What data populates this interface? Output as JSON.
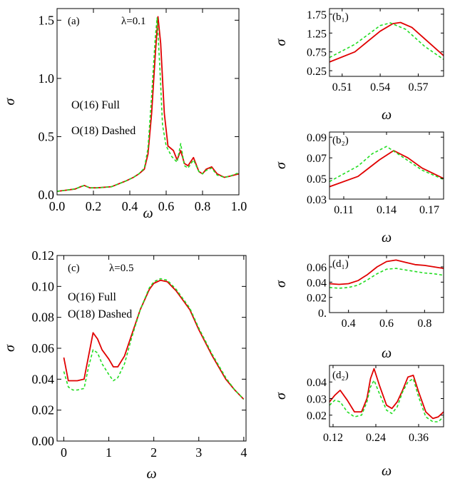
{
  "colors": {
    "full": "#e00000",
    "dashed": "#22dd22",
    "frame": "#000000"
  },
  "legend": {
    "full_label": "O(16) Full",
    "dashed_label": "O(18) Dashed"
  },
  "chart_data": [
    {
      "id": "a",
      "type": "line",
      "tag": "(a)",
      "lambda_label": "λ=0.1",
      "xlabel": "ω",
      "ylabel": "σ",
      "xlim": [
        0.0,
        1.0
      ],
      "ylim": [
        0.0,
        1.6
      ],
      "xticks": [
        "0.0",
        "0.2",
        "0.4",
        "0.6",
        "0.8",
        "1.0"
      ],
      "yticks": [
        "0.0",
        "0.5",
        "1.0",
        "1.5"
      ],
      "series": [
        {
          "name": "O(16) Full",
          "style": "solid",
          "x": [
            0.0,
            0.05,
            0.1,
            0.13,
            0.15,
            0.18,
            0.22,
            0.3,
            0.38,
            0.42,
            0.45,
            0.48,
            0.5,
            0.52,
            0.54,
            0.555,
            0.57,
            0.59,
            0.61,
            0.64,
            0.66,
            0.68,
            0.7,
            0.72,
            0.75,
            0.78,
            0.8,
            0.82,
            0.85,
            0.88,
            0.92,
            0.95,
            1.0
          ],
          "y": [
            0.03,
            0.04,
            0.05,
            0.07,
            0.08,
            0.06,
            0.06,
            0.07,
            0.12,
            0.15,
            0.18,
            0.22,
            0.35,
            0.7,
            1.2,
            1.53,
            1.3,
            0.7,
            0.42,
            0.38,
            0.3,
            0.38,
            0.27,
            0.25,
            0.32,
            0.2,
            0.18,
            0.22,
            0.24,
            0.18,
            0.15,
            0.16,
            0.18
          ]
        },
        {
          "name": "O(18) Dashed",
          "style": "dashed",
          "x": [
            0.0,
            0.05,
            0.1,
            0.13,
            0.15,
            0.18,
            0.22,
            0.3,
            0.38,
            0.42,
            0.45,
            0.48,
            0.5,
            0.52,
            0.54,
            0.55,
            0.565,
            0.58,
            0.6,
            0.63,
            0.66,
            0.68,
            0.7,
            0.72,
            0.75,
            0.78,
            0.8,
            0.82,
            0.85,
            0.88,
            0.92,
            0.95,
            1.0
          ],
          "y": [
            0.03,
            0.04,
            0.05,
            0.07,
            0.08,
            0.06,
            0.06,
            0.07,
            0.12,
            0.15,
            0.18,
            0.23,
            0.4,
            0.85,
            1.35,
            1.52,
            1.1,
            0.6,
            0.42,
            0.33,
            0.28,
            0.44,
            0.25,
            0.23,
            0.3,
            0.2,
            0.18,
            0.21,
            0.23,
            0.17,
            0.15,
            0.16,
            0.19
          ]
        }
      ]
    },
    {
      "id": "b1",
      "type": "line",
      "tag": "(b₁)",
      "xlabel": "ω",
      "ylabel": "σ",
      "xlim": [
        0.5,
        0.59
      ],
      "ylim": [
        0.1,
        1.9
      ],
      "xticks": [
        "0.51",
        "0.54",
        "0.57"
      ],
      "yticks": [
        "0.25",
        "0.75",
        "1.25",
        "1.75"
      ],
      "series": [
        {
          "name": "O(16) Full",
          "style": "solid",
          "x": [
            0.5,
            0.52,
            0.54,
            0.55,
            0.556,
            0.565,
            0.575,
            0.59
          ],
          "y": [
            0.48,
            0.75,
            1.3,
            1.5,
            1.53,
            1.4,
            1.1,
            0.65
          ]
        },
        {
          "name": "O(18) Dashed",
          "style": "dashed",
          "x": [
            0.5,
            0.52,
            0.54,
            0.548,
            0.56,
            0.575,
            0.59
          ],
          "y": [
            0.6,
            0.95,
            1.45,
            1.52,
            1.35,
            0.9,
            0.55
          ]
        }
      ]
    },
    {
      "id": "b2",
      "type": "line",
      "tag": "(b₂)",
      "xlabel": "ω",
      "ylabel": "σ",
      "xlim": [
        0.1,
        0.18
      ],
      "ylim": [
        0.03,
        0.095
      ],
      "xticks": [
        "0.11",
        "0.14",
        "0.17"
      ],
      "yticks": [
        "0.03",
        "0.05",
        "0.07",
        "0.09"
      ],
      "series": [
        {
          "name": "O(16) Full",
          "style": "solid",
          "x": [
            0.1,
            0.12,
            0.135,
            0.145,
            0.155,
            0.165,
            0.18
          ],
          "y": [
            0.042,
            0.052,
            0.068,
            0.077,
            0.07,
            0.06,
            0.05
          ]
        },
        {
          "name": "O(18) Dashed",
          "style": "dashed",
          "x": [
            0.1,
            0.12,
            0.13,
            0.14,
            0.15,
            0.165,
            0.18
          ],
          "y": [
            0.047,
            0.062,
            0.074,
            0.081,
            0.072,
            0.058,
            0.049
          ]
        }
      ]
    },
    {
      "id": "c",
      "type": "line",
      "tag": "(c)",
      "lambda_label": "λ=0.5",
      "xlabel": "ω",
      "ylabel": "σ",
      "xlim": [
        -0.15,
        4.05
      ],
      "ylim": [
        0.0,
        0.12
      ],
      "xticks": [
        "0",
        "1",
        "2",
        "3",
        "4"
      ],
      "yticks": [
        "0.00",
        "0.02",
        "0.04",
        "0.06",
        "0.08",
        "0.10",
        "0.12"
      ],
      "series": [
        {
          "name": "O(16) Full",
          "style": "solid",
          "x": [
            0.0,
            0.1,
            0.2,
            0.3,
            0.45,
            0.55,
            0.65,
            0.75,
            0.85,
            1.0,
            1.1,
            1.2,
            1.35,
            1.5,
            1.7,
            1.9,
            2.0,
            2.15,
            2.3,
            2.5,
            2.8,
            3.0,
            3.3,
            3.6,
            3.8,
            4.0
          ],
          "y": [
            0.054,
            0.039,
            0.039,
            0.039,
            0.04,
            0.055,
            0.07,
            0.066,
            0.059,
            0.053,
            0.048,
            0.048,
            0.055,
            0.068,
            0.085,
            0.098,
            0.102,
            0.104,
            0.103,
            0.097,
            0.085,
            0.072,
            0.055,
            0.04,
            0.033,
            0.027
          ]
        },
        {
          "name": "O(18) Dashed",
          "style": "dashed",
          "x": [
            0.0,
            0.1,
            0.2,
            0.3,
            0.45,
            0.55,
            0.65,
            0.75,
            0.85,
            1.0,
            1.1,
            1.2,
            1.35,
            1.5,
            1.7,
            1.9,
            2.0,
            2.15,
            2.3,
            2.5,
            2.8,
            3.0,
            3.3,
            3.6,
            3.8,
            4.0
          ],
          "y": [
            0.045,
            0.035,
            0.033,
            0.033,
            0.034,
            0.048,
            0.059,
            0.057,
            0.05,
            0.043,
            0.039,
            0.041,
            0.05,
            0.066,
            0.085,
            0.099,
            0.103,
            0.105,
            0.104,
            0.098,
            0.086,
            0.073,
            0.056,
            0.041,
            0.033,
            0.027
          ]
        }
      ]
    },
    {
      "id": "d1",
      "type": "line",
      "tag": "(d₁)",
      "xlabel": "ω",
      "ylabel": "σ",
      "xlim": [
        0.3,
        0.9
      ],
      "ylim": [
        0.0,
        0.075
      ],
      "xticks": [
        "0.4",
        "0.6",
        "0.8"
      ],
      "yticks": [
        "0.",
        "0.02",
        "0.04",
        "0.06"
      ],
      "series": [
        {
          "name": "O(16) Full",
          "style": "solid",
          "x": [
            0.3,
            0.35,
            0.4,
            0.45,
            0.5,
            0.55,
            0.6,
            0.65,
            0.7,
            0.75,
            0.8,
            0.85,
            0.9
          ],
          "y": [
            0.038,
            0.037,
            0.038,
            0.042,
            0.05,
            0.06,
            0.067,
            0.069,
            0.066,
            0.063,
            0.062,
            0.06,
            0.058
          ]
        },
        {
          "name": "O(18) Dashed",
          "style": "dashed",
          "x": [
            0.3,
            0.35,
            0.4,
            0.45,
            0.5,
            0.55,
            0.6,
            0.65,
            0.7,
            0.75,
            0.8,
            0.85,
            0.9
          ],
          "y": [
            0.033,
            0.032,
            0.033,
            0.036,
            0.043,
            0.051,
            0.057,
            0.058,
            0.056,
            0.054,
            0.052,
            0.051,
            0.049
          ]
        }
      ]
    },
    {
      "id": "d2",
      "type": "line",
      "tag": "(d₂)",
      "xlabel": "ω",
      "ylabel": "σ",
      "xlim": [
        0.11,
        0.43
      ],
      "ylim": [
        0.013,
        0.05
      ],
      "xticks": [
        "0.12",
        "0.24",
        "0.36"
      ],
      "yticks": [
        "0.02",
        "0.03",
        "0.04"
      ],
      "series": [
        {
          "name": "O(16) Full",
          "style": "solid",
          "x": [
            0.11,
            0.125,
            0.14,
            0.16,
            0.18,
            0.2,
            0.215,
            0.225,
            0.235,
            0.25,
            0.27,
            0.285,
            0.3,
            0.315,
            0.33,
            0.345,
            0.36,
            0.38,
            0.4,
            0.415,
            0.43
          ],
          "y": [
            0.028,
            0.032,
            0.035,
            0.029,
            0.022,
            0.022,
            0.03,
            0.042,
            0.048,
            0.038,
            0.026,
            0.024,
            0.028,
            0.035,
            0.043,
            0.044,
            0.034,
            0.022,
            0.018,
            0.019,
            0.022
          ]
        },
        {
          "name": "O(18) Dashed",
          "style": "dashed",
          "x": [
            0.11,
            0.125,
            0.14,
            0.16,
            0.18,
            0.2,
            0.215,
            0.225,
            0.235,
            0.25,
            0.27,
            0.285,
            0.3,
            0.315,
            0.33,
            0.345,
            0.36,
            0.38,
            0.4,
            0.415,
            0.43
          ],
          "y": [
            0.026,
            0.029,
            0.028,
            0.022,
            0.019,
            0.02,
            0.028,
            0.037,
            0.041,
            0.033,
            0.023,
            0.021,
            0.025,
            0.034,
            0.04,
            0.042,
            0.031,
            0.019,
            0.016,
            0.016,
            0.019
          ]
        }
      ]
    }
  ]
}
